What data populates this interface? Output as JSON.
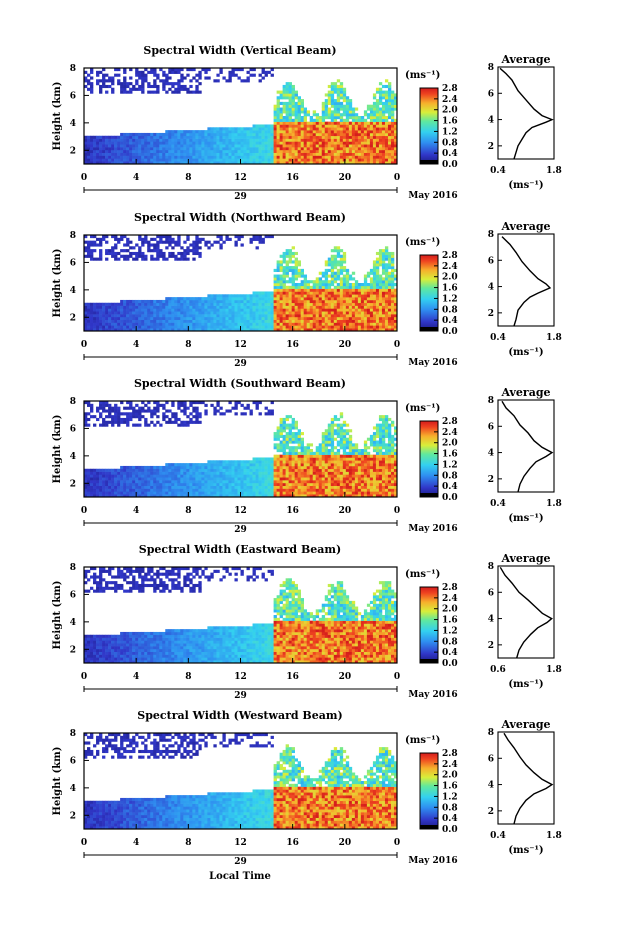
{
  "figure": {
    "xlabel_bottom": "Local Time",
    "colorbar_unit": "(ms⁻¹)",
    "avg_title": "Average",
    "avg_xlabel": "(ms⁻¹)"
  },
  "chart_data": [
    {
      "type": "heatmap",
      "title": "Spectral Width (Vertical Beam)",
      "ylabel": "Height (km)",
      "yticks": [
        "2",
        "4",
        "6",
        "8"
      ],
      "xticks": [
        "0",
        "4",
        "8",
        "12",
        "16",
        "20",
        "0"
      ],
      "xlim": [
        0,
        24
      ],
      "ylim": [
        1,
        8
      ],
      "day_label": "29",
      "date_label": "May 2016",
      "colorbar_ticks": [
        "0.0",
        "0.4",
        "0.8",
        "1.2",
        "1.6",
        "2.0",
        "2.4",
        "2.8"
      ],
      "colorbar_range": [
        0.0,
        2.8
      ],
      "average_profile": {
        "title": "Average",
        "xticks": [
          "0.4",
          "1.8"
        ],
        "yticks": [
          "2",
          "4",
          "6",
          "8"
        ],
        "xlim": [
          0.4,
          1.8
        ],
        "points": [
          [
            0.8,
            1
          ],
          [
            0.85,
            1.5
          ],
          [
            0.9,
            2.0
          ],
          [
            1.0,
            2.5
          ],
          [
            1.1,
            3.0
          ],
          [
            1.25,
            3.4
          ],
          [
            1.6,
            3.8
          ],
          [
            1.75,
            4.0
          ],
          [
            1.5,
            4.3
          ],
          [
            1.3,
            4.8
          ],
          [
            1.1,
            5.5
          ],
          [
            0.9,
            6.2
          ],
          [
            0.75,
            7.0
          ],
          [
            0.6,
            7.5
          ],
          [
            0.45,
            7.9
          ]
        ]
      }
    },
    {
      "type": "heatmap",
      "title": "Spectral Width (Northward Beam)",
      "ylabel": "Height (km)",
      "yticks": [
        "2",
        "4",
        "6",
        "8"
      ],
      "xticks": [
        "0",
        "4",
        "8",
        "12",
        "16",
        "20",
        "0"
      ],
      "xlim": [
        0,
        24
      ],
      "ylim": [
        1,
        8
      ],
      "day_label": "29",
      "date_label": "May 2016",
      "colorbar_ticks": [
        "0.0",
        "0.4",
        "0.8",
        "1.2",
        "1.6",
        "2.0",
        "2.4",
        "2.8"
      ],
      "colorbar_range": [
        0.0,
        2.8
      ],
      "average_profile": {
        "title": "Average",
        "xticks": [
          "0.4",
          "1.8"
        ],
        "yticks": [
          "2",
          "4",
          "6",
          "8"
        ],
        "xlim": [
          0.4,
          1.8
        ],
        "points": [
          [
            0.8,
            1
          ],
          [
            0.85,
            1.5
          ],
          [
            0.9,
            2.2
          ],
          [
            1.05,
            2.8
          ],
          [
            1.2,
            3.2
          ],
          [
            1.4,
            3.5
          ],
          [
            1.7,
            3.9
          ],
          [
            1.6,
            4.2
          ],
          [
            1.4,
            4.6
          ],
          [
            1.2,
            5.2
          ],
          [
            1.0,
            5.9
          ],
          [
            0.85,
            6.6
          ],
          [
            0.7,
            7.2
          ],
          [
            0.5,
            7.8
          ]
        ]
      }
    },
    {
      "type": "heatmap",
      "title": "Spectral Width (Southward Beam)",
      "ylabel": "Height (km)",
      "yticks": [
        "2",
        "4",
        "6",
        "8"
      ],
      "xticks": [
        "0",
        "4",
        "8",
        "12",
        "16",
        "20",
        "0"
      ],
      "xlim": [
        0,
        24
      ],
      "ylim": [
        1,
        8
      ],
      "day_label": "29",
      "date_label": "May 2016",
      "colorbar_ticks": [
        "0.0",
        "0.4",
        "0.8",
        "1.2",
        "1.6",
        "2.0",
        "2.4",
        "2.8"
      ],
      "colorbar_range": [
        0.0,
        2.8
      ],
      "average_profile": {
        "title": "Average",
        "xticks": [
          "0.4",
          "1.8"
        ],
        "yticks": [
          "2",
          "4",
          "6",
          "8"
        ],
        "xlim": [
          0.4,
          1.8
        ],
        "points": [
          [
            0.9,
            1
          ],
          [
            0.95,
            1.6
          ],
          [
            1.05,
            2.2
          ],
          [
            1.2,
            2.8
          ],
          [
            1.35,
            3.3
          ],
          [
            1.6,
            3.7
          ],
          [
            1.75,
            4.0
          ],
          [
            1.5,
            4.4
          ],
          [
            1.3,
            4.9
          ],
          [
            1.15,
            5.5
          ],
          [
            0.95,
            6.1
          ],
          [
            0.8,
            6.8
          ],
          [
            0.6,
            7.4
          ],
          [
            0.5,
            7.9
          ]
        ]
      }
    },
    {
      "type": "heatmap",
      "title": "Spectral Width (Eastward Beam)",
      "ylabel": "Height (km)",
      "yticks": [
        "2",
        "4",
        "6",
        "8"
      ],
      "xticks": [
        "0",
        "4",
        "8",
        "12",
        "16",
        "20",
        "0"
      ],
      "xlim": [
        0,
        24
      ],
      "ylim": [
        1,
        8
      ],
      "day_label": "29",
      "date_label": "May 2016",
      "colorbar_ticks": [
        "0.0",
        "0.4",
        "0.8",
        "1.2",
        "1.6",
        "2.0",
        "2.4",
        "2.8"
      ],
      "colorbar_range": [
        0.0,
        2.8
      ],
      "average_profile": {
        "title": "Average",
        "xticks": [
          "0.6",
          "1.8"
        ],
        "yticks": [
          "2",
          "4",
          "6",
          "8"
        ],
        "xlim": [
          0.6,
          1.8
        ],
        "points": [
          [
            1.0,
            1
          ],
          [
            1.05,
            1.6
          ],
          [
            1.15,
            2.2
          ],
          [
            1.3,
            2.8
          ],
          [
            1.45,
            3.3
          ],
          [
            1.65,
            3.7
          ],
          [
            1.75,
            4.0
          ],
          [
            1.55,
            4.4
          ],
          [
            1.4,
            4.9
          ],
          [
            1.25,
            5.4
          ],
          [
            1.05,
            6.0
          ],
          [
            0.9,
            6.7
          ],
          [
            0.75,
            7.3
          ],
          [
            0.65,
            7.9
          ]
        ]
      }
    },
    {
      "type": "heatmap",
      "title": "Spectral Width (Westward Beam)",
      "ylabel": "Height (km)",
      "yticks": [
        "2",
        "4",
        "6",
        "8"
      ],
      "xticks": [
        "0",
        "4",
        "8",
        "12",
        "16",
        "20",
        "0"
      ],
      "xlim": [
        0,
        24
      ],
      "ylim": [
        1,
        8
      ],
      "day_label": "29",
      "date_label": "May 2016",
      "colorbar_ticks": [
        "0.0",
        "0.4",
        "0.8",
        "1.2",
        "1.6",
        "2.0",
        "2.4",
        "2.8"
      ],
      "colorbar_range": [
        0.0,
        2.8
      ],
      "average_profile": {
        "title": "Average",
        "xticks": [
          "0.4",
          "1.8"
        ],
        "yticks": [
          "2",
          "4",
          "6",
          "8"
        ],
        "xlim": [
          0.4,
          1.8
        ],
        "points": [
          [
            0.8,
            1
          ],
          [
            0.85,
            1.6
          ],
          [
            0.95,
            2.2
          ],
          [
            1.1,
            2.8
          ],
          [
            1.3,
            3.3
          ],
          [
            1.6,
            3.7
          ],
          [
            1.75,
            4.0
          ],
          [
            1.5,
            4.4
          ],
          [
            1.3,
            4.9
          ],
          [
            1.1,
            5.5
          ],
          [
            0.95,
            6.1
          ],
          [
            0.8,
            6.8
          ],
          [
            0.65,
            7.4
          ],
          [
            0.55,
            7.9
          ]
        ]
      }
    }
  ]
}
